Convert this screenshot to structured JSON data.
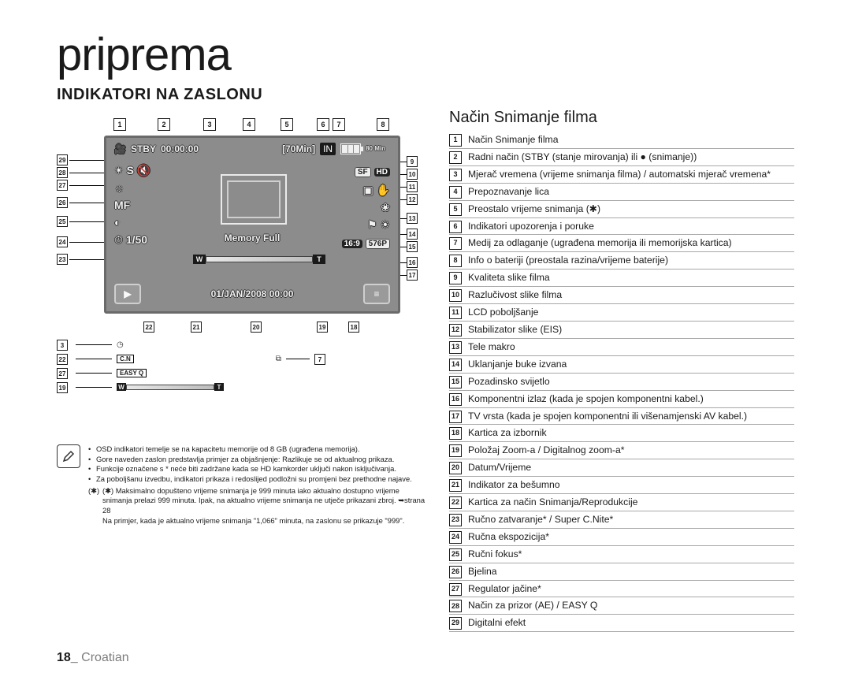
{
  "title": "priprema",
  "subtitle": "INDIKATORI NA ZASLONU",
  "right_title": "Način Snimanje filma",
  "legend": [
    "Način Snimanje filma",
    "Radni način (STBY (stanje mirovanja) ili ● (snimanje))",
    "Mjerač vremena (vrijeme snimanja filma) / automatski mjerač vremena*",
    "Prepoznavanje lica",
    "Preostalo vrijeme snimanja (✱)",
    "Indikatori upozorenja i poruke",
    "Medij za odlaganje (ugrađena memorija ili memorijska kartica)",
    "Info o bateriji (preostala razina/vrijeme baterije)",
    "Kvaliteta slike filma",
    "Razlučivost slike filma",
    "LCD poboljšanje",
    "Stabilizator slike (EIS)",
    "Tele makro",
    "Uklanjanje buke izvana",
    "Pozadinsko svijetlo",
    "Komponentni izlaz (kada je spojen komponentni kabel.)",
    "TV vrsta (kada je spojen komponentni ili višenamjenski AV kabel.)",
    "Kartica za izbornik",
    "Položaj Zoom-a / Digitalnog zoom-a*",
    "Datum/Vrijeme",
    "Indikator za bešumno",
    "Kartica za način Snimanja/Reprodukcije",
    "Ručno zatvaranje* / Super C.Nite*",
    "Ručna ekspozicija*",
    "Ručni fokus*",
    "Bjelina",
    "Regulator jačine*",
    "Način za prizor (AE) / EASY Q",
    "Digitalni efekt"
  ],
  "panel": {
    "stby": "STBY",
    "timer": "00:00:00",
    "remain": "[70Min]",
    "in": "IN",
    "batt": "80 Min",
    "memory_full": "Memory Full",
    "manual": "1/50",
    "date": "01/JAN/2008 00:00",
    "sf": "SF",
    "hd": "HD",
    "w": "W",
    "t": "T",
    "mf": "MF",
    "s": "S",
    "aspect": "16:9",
    "tv": "576P"
  },
  "mini": {
    "cn": "C.N",
    "easyq": "EASY Q"
  },
  "top_callouts": [
    "1",
    "2",
    "3",
    "4",
    "5",
    "6",
    "7",
    "8"
  ],
  "left_callouts": [
    "29",
    "28",
    "27",
    "26",
    "25",
    "24",
    "23"
  ],
  "right_callouts": [
    "9",
    "10",
    "11",
    "12",
    "13",
    "14",
    "15",
    "16",
    "17"
  ],
  "bottom_callouts": [
    "22",
    "21",
    "20",
    "19",
    "18"
  ],
  "mini_callouts_left": [
    "3",
    "22",
    "27",
    "19"
  ],
  "mini_right_top": "7",
  "notes": [
    "OSD indikatori temelje se na kapacitetu memorije od 8 GB (ugrađena memorija).",
    "Gore naveden zaslon predstavlja primjer za objašnjenje: Razlikuje se od aktualnog prikaza.",
    "Funkcije označene s * neće biti zadržane kada se HD kamkorder uključi nakon isključivanja.",
    "Za poboljšanu izvedbu, indikatori prikaza i redoslijed podložni su promjeni bez prethodne najave."
  ],
  "star_note": "(✱) Maksimalno dopušteno vrijeme snimanja je 999 minuta iako aktualno dostupno vrijeme snimanja prelazi 999 minuta. Ipak, na aktualno vrijeme snimanja ne utječe prikazani zbroj. ➥strana 28\nNa primjer, kada je aktualno vrijeme snimanja \"1,066\" minuta, na zaslonu se prikazuje \"999\".",
  "footer": {
    "page": "18_",
    "lang": "Croatian"
  },
  "colors": {
    "panel_border": "#6a6a6a",
    "panel_bg": "#8c8c8c",
    "text": "#1a1a1a",
    "legend_divider": "#a8a8a8",
    "footer_lang": "#7d7d7d"
  }
}
